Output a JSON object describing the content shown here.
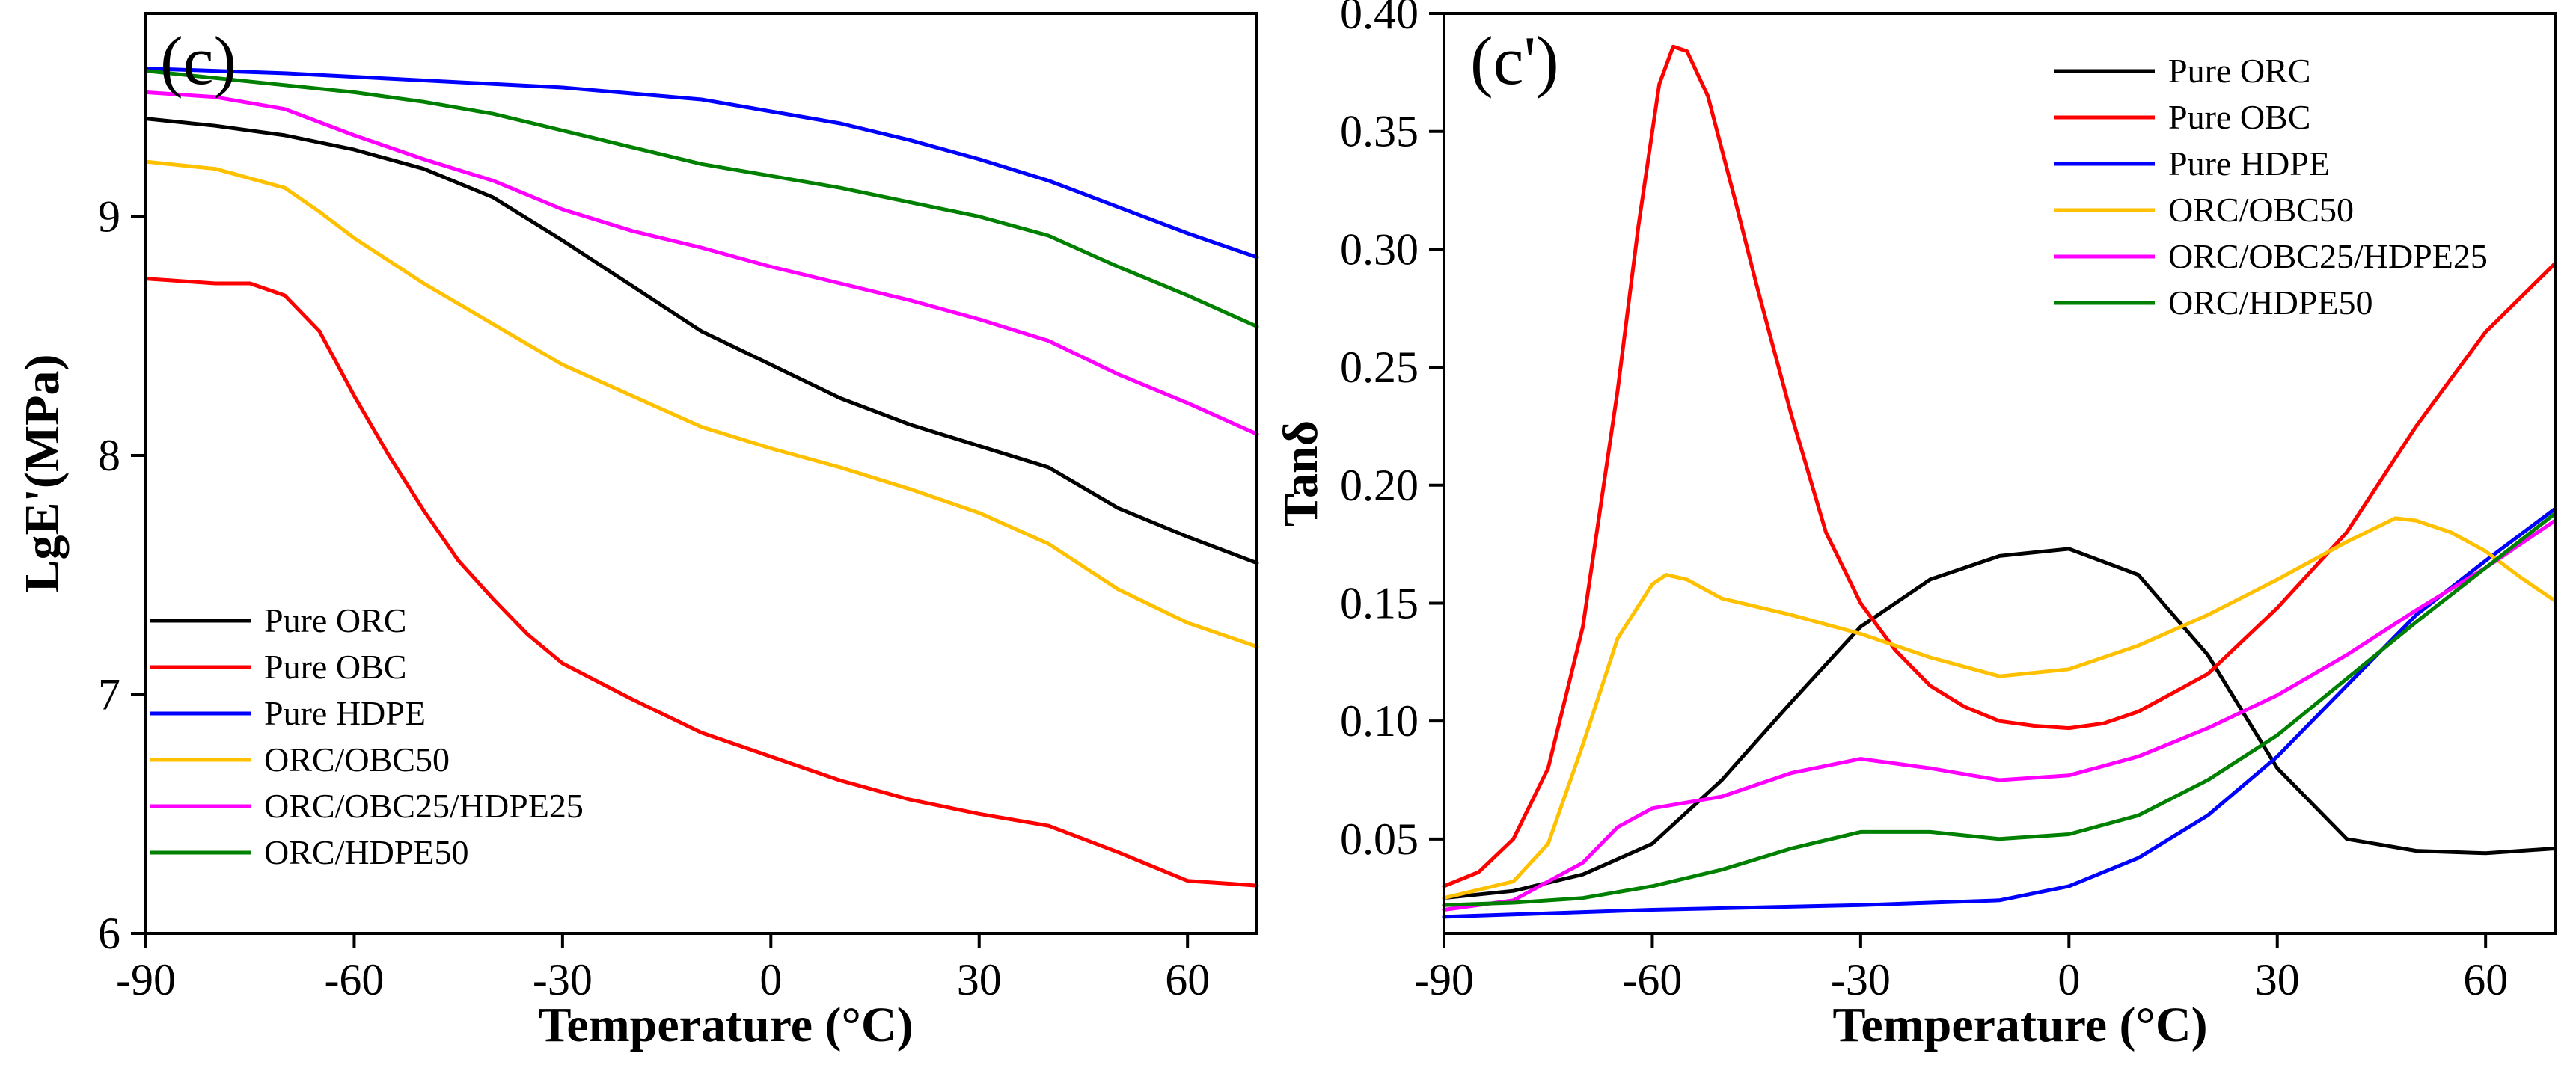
{
  "chart_data": [
    {
      "id": "storage-modulus",
      "type": "line",
      "panel_label": "(c)",
      "xlabel": "Temperature (°C)",
      "ylabel": "LgE'(MPa)",
      "xlim": [
        -90,
        70
      ],
      "ylim": [
        6,
        9.85
      ],
      "xticks": [
        -90,
        -60,
        -30,
        0,
        30,
        60
      ],
      "yticks": [
        6,
        7,
        8,
        9
      ],
      "ytick_labels": [
        "6",
        "7",
        "8",
        "9"
      ],
      "legend_position": "lower-left",
      "series": [
        {
          "name": "Pure ORC",
          "color": "#000000",
          "x": [
            -90,
            -80,
            -70,
            -60,
            -50,
            -40,
            -30,
            -20,
            -10,
            0,
            10,
            20,
            30,
            40,
            50,
            60,
            70
          ],
          "y": [
            9.41,
            9.38,
            9.34,
            9.28,
            9.2,
            9.08,
            8.9,
            8.71,
            8.52,
            8.38,
            8.24,
            8.13,
            8.04,
            7.95,
            7.78,
            7.66,
            7.55
          ]
        },
        {
          "name": "Pure OBC",
          "color": "#ff0000",
          "x": [
            -90,
            -80,
            -75,
            -70,
            -65,
            -60,
            -55,
            -50,
            -45,
            -40,
            -35,
            -30,
            -20,
            -10,
            0,
            10,
            20,
            30,
            40,
            50,
            60,
            70
          ],
          "y": [
            8.74,
            8.72,
            8.72,
            8.67,
            8.52,
            8.25,
            8.0,
            7.77,
            7.56,
            7.4,
            7.25,
            7.13,
            6.98,
            6.84,
            6.74,
            6.64,
            6.56,
            6.5,
            6.45,
            6.34,
            6.22,
            6.2
          ]
        },
        {
          "name": "Pure HDPE",
          "color": "#0000ff",
          "x": [
            -90,
            -70,
            -50,
            -30,
            -10,
            0,
            10,
            20,
            30,
            40,
            50,
            60,
            70
          ],
          "y": [
            9.62,
            9.6,
            9.57,
            9.54,
            9.49,
            9.44,
            9.39,
            9.32,
            9.24,
            9.15,
            9.04,
            8.93,
            8.83
          ]
        },
        {
          "name": "ORC/OBC50",
          "color": "#ffc000",
          "x": [
            -90,
            -80,
            -70,
            -65,
            -60,
            -50,
            -40,
            -30,
            -20,
            -10,
            0,
            10,
            20,
            30,
            40,
            50,
            60,
            70
          ],
          "y": [
            9.23,
            9.2,
            9.12,
            9.02,
            8.91,
            8.72,
            8.55,
            8.38,
            8.25,
            8.12,
            8.03,
            7.95,
            7.86,
            7.76,
            7.63,
            7.44,
            7.3,
            7.2
          ]
        },
        {
          "name": "ORC/OBC25/HDPE25",
          "color": "#ff00ff",
          "x": [
            -90,
            -80,
            -70,
            -60,
            -50,
            -40,
            -30,
            -20,
            -10,
            0,
            10,
            20,
            30,
            40,
            50,
            60,
            70
          ],
          "y": [
            9.52,
            9.5,
            9.45,
            9.34,
            9.24,
            9.15,
            9.03,
            8.94,
            8.87,
            8.79,
            8.72,
            8.65,
            8.57,
            8.48,
            8.34,
            8.22,
            8.09
          ]
        },
        {
          "name": "ORC/HDPE50",
          "color": "#008000",
          "x": [
            -90,
            -80,
            -70,
            -60,
            -50,
            -40,
            -30,
            -20,
            -10,
            0,
            10,
            20,
            30,
            40,
            50,
            60,
            70
          ],
          "y": [
            9.61,
            9.58,
            9.55,
            9.52,
            9.48,
            9.43,
            9.36,
            9.29,
            9.22,
            9.17,
            9.12,
            9.06,
            9.0,
            8.92,
            8.79,
            8.67,
            8.54
          ]
        }
      ]
    },
    {
      "id": "tan-delta",
      "type": "line",
      "panel_label": "(c')",
      "xlabel": "Temperature (°C)",
      "ylabel": "Tanδ",
      "xlim": [
        -90,
        70
      ],
      "ylim": [
        0.01,
        0.4
      ],
      "xticks": [
        -90,
        -60,
        -30,
        0,
        30,
        60
      ],
      "yticks": [
        0.05,
        0.1,
        0.15,
        0.2,
        0.25,
        0.3,
        0.35,
        0.4
      ],
      "ytick_labels": [
        "0.05",
        "0.10",
        "0.15",
        "0.20",
        "0.25",
        "0.30",
        "0.35",
        "0.40"
      ],
      "legend_position": "top-right",
      "series": [
        {
          "name": "Pure ORC",
          "color": "#000000",
          "x": [
            -90,
            -80,
            -70,
            -60,
            -50,
            -40,
            -30,
            -20,
            -10,
            0,
            10,
            20,
            30,
            40,
            50,
            60,
            70
          ],
          "y": [
            0.025,
            0.028,
            0.035,
            0.048,
            0.075,
            0.108,
            0.14,
            0.16,
            0.17,
            0.173,
            0.162,
            0.128,
            0.08,
            0.05,
            0.045,
            0.044,
            0.046
          ]
        },
        {
          "name": "Pure OBC",
          "color": "#ff0000",
          "x": [
            -90,
            -85,
            -80,
            -75,
            -70,
            -65,
            -62,
            -59,
            -57,
            -55,
            -52,
            -48,
            -45,
            -40,
            -35,
            -30,
            -25,
            -20,
            -15,
            -10,
            -5,
            0,
            5,
            10,
            20,
            30,
            40,
            50,
            60,
            70
          ],
          "y": [
            0.03,
            0.036,
            0.05,
            0.08,
            0.14,
            0.24,
            0.31,
            0.37,
            0.386,
            0.384,
            0.365,
            0.32,
            0.285,
            0.23,
            0.18,
            0.15,
            0.13,
            0.115,
            0.106,
            0.1,
            0.098,
            0.097,
            0.099,
            0.104,
            0.12,
            0.148,
            0.18,
            0.225,
            0.265,
            0.294
          ]
        },
        {
          "name": "Pure HDPE",
          "color": "#0000ff",
          "x": [
            -90,
            -60,
            -30,
            -10,
            0,
            10,
            20,
            30,
            40,
            50,
            60,
            70
          ],
          "y": [
            0.017,
            0.02,
            0.022,
            0.024,
            0.03,
            0.042,
            0.06,
            0.085,
            0.115,
            0.145,
            0.168,
            0.19
          ]
        },
        {
          "name": "ORC/OBC50",
          "color": "#ffc000",
          "x": [
            -90,
            -80,
            -75,
            -70,
            -65,
            -60,
            -58,
            -55,
            -50,
            -40,
            -30,
            -20,
            -10,
            0,
            10,
            20,
            30,
            40,
            47,
            50,
            55,
            60,
            65,
            70
          ],
          "y": [
            0.025,
            0.032,
            0.048,
            0.09,
            0.135,
            0.158,
            0.162,
            0.16,
            0.152,
            0.145,
            0.137,
            0.127,
            0.119,
            0.122,
            0.132,
            0.145,
            0.16,
            0.176,
            0.186,
            0.185,
            0.18,
            0.172,
            0.161,
            0.151
          ]
        },
        {
          "name": "ORC/OBC25/HDPE25",
          "color": "#ff00ff",
          "x": [
            -90,
            -80,
            -70,
            -65,
            -60,
            -50,
            -40,
            -30,
            -20,
            -10,
            0,
            10,
            20,
            30,
            40,
            50,
            60,
            70
          ],
          "y": [
            0.02,
            0.024,
            0.04,
            0.055,
            0.063,
            0.068,
            0.078,
            0.084,
            0.08,
            0.075,
            0.077,
            0.085,
            0.097,
            0.111,
            0.128,
            0.147,
            0.165,
            0.185
          ]
        },
        {
          "name": "ORC/HDPE50",
          "color": "#008000",
          "x": [
            -90,
            -80,
            -70,
            -60,
            -50,
            -40,
            -30,
            -20,
            -10,
            0,
            10,
            20,
            30,
            40,
            50,
            60,
            70
          ],
          "y": [
            0.022,
            0.023,
            0.025,
            0.03,
            0.037,
            0.046,
            0.053,
            0.053,
            0.05,
            0.052,
            0.06,
            0.075,
            0.094,
            0.118,
            0.142,
            0.165,
            0.188
          ]
        }
      ]
    }
  ]
}
